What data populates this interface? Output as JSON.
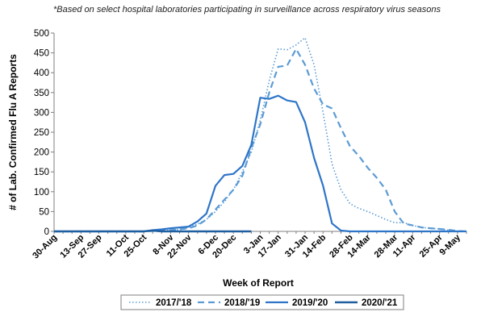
{
  "note": "*Based on select hospital laboratories participating in surveillance across respiratory virus seasons",
  "chart_data": {
    "type": "line",
    "xlabel": "Week of Report",
    "ylabel": "# of Lab. Confirmed Flu A Reports",
    "ylim": [
      0,
      500
    ],
    "yticks": [
      0,
      50,
      100,
      150,
      200,
      250,
      300,
      350,
      400,
      450,
      500
    ],
    "x_tick_labels": [
      "30-Aug",
      "13-Sep",
      "27-Sep",
      "11-Oct",
      "25-Oct",
      "8-Nov",
      "22-Nov",
      "6-Dec",
      "20-Dec",
      "3-Jan",
      "17-Jan",
      "31-Jan",
      "14-Feb",
      "28-Feb",
      "14-Mar",
      "28-Mar",
      "11-Apr",
      "25-Apr",
      "9-May"
    ],
    "grid": false,
    "legend_position": "bottom",
    "series": [
      {
        "name": "2017/'18",
        "color": "#5b9bd5",
        "dash": "dotted",
        "values": [
          0,
          0,
          0,
          0,
          0,
          0,
          0,
          0,
          0,
          0,
          0,
          1,
          2,
          3,
          5,
          10,
          18,
          30,
          50,
          75,
          105,
          150,
          200,
          280,
          380,
          460,
          458,
          470,
          488,
          420,
          300,
          170,
          105,
          70,
          58,
          50,
          40,
          30,
          22,
          22,
          15,
          10,
          8,
          6,
          3,
          1,
          0
        ]
      },
      {
        "name": "2018/'19",
        "color": "#5b9bd5",
        "dash": "dashed",
        "values": [
          0,
          0,
          0,
          0,
          0,
          0,
          0,
          0,
          0,
          0,
          0,
          1,
          2,
          3,
          5,
          8,
          15,
          30,
          55,
          80,
          105,
          140,
          210,
          270,
          350,
          415,
          418,
          460,
          420,
          360,
          320,
          310,
          260,
          215,
          190,
          160,
          135,
          105,
          50,
          20,
          15,
          10,
          8,
          6,
          4,
          1,
          0
        ]
      },
      {
        "name": "2019/'20",
        "color": "#2e75c8",
        "dash": "solid",
        "values": [
          0,
          0,
          0,
          0,
          0,
          0,
          0,
          0,
          0,
          0,
          0,
          3,
          5,
          8,
          10,
          12,
          25,
          45,
          115,
          142,
          145,
          165,
          218,
          337,
          334,
          342,
          330,
          326,
          275,
          185,
          115,
          20,
          2,
          0,
          0,
          0,
          0,
          0,
          0,
          0,
          0,
          0,
          0,
          0,
          0,
          0,
          0
        ]
      },
      {
        "name": "2020/'21",
        "color": "#1f5fa0",
        "dash": "solid",
        "values": [
          0,
          0,
          0,
          0,
          0,
          0,
          0,
          0,
          0,
          0,
          0,
          2,
          0,
          0,
          0,
          0,
          0,
          0,
          0,
          0,
          0,
          0,
          0
        ]
      }
    ]
  }
}
